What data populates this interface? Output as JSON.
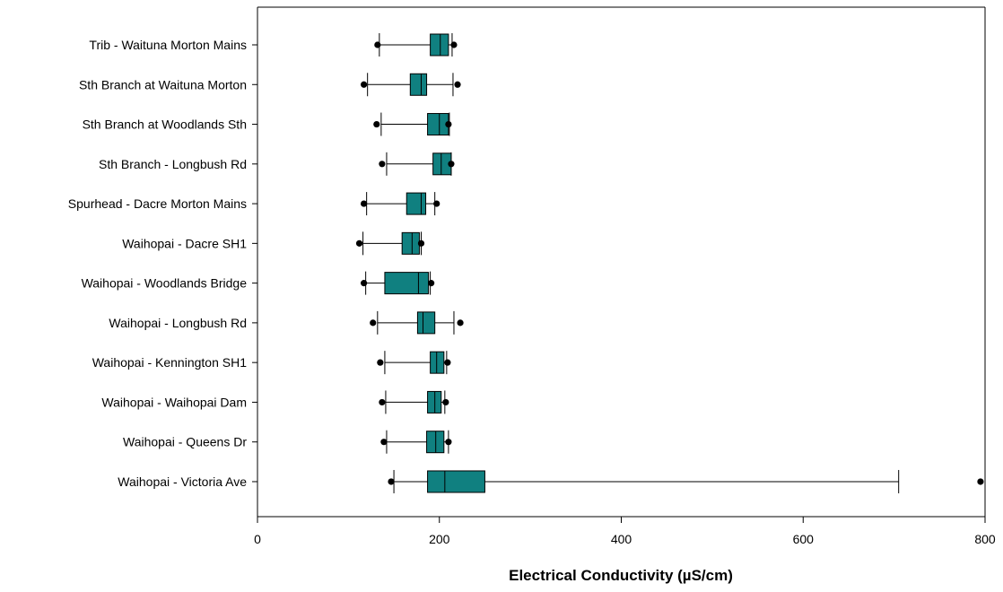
{
  "chart_data": {
    "type": "boxplot",
    "orientation": "horizontal",
    "xlabel": "Electrical Conductivity (µS/cm)",
    "xlim": [
      0,
      800
    ],
    "xticks": [
      0,
      200,
      400,
      600,
      800
    ],
    "grid": false,
    "box_color": "#108080",
    "categories": [
      "Trib - Waituna Morton Mains",
      "Sth Branch at Waituna Morton",
      "Sth Branch at Woodlands Sth",
      "Sth Branch - Longbush Rd",
      "Spurhead - Dacre Morton Mains",
      "Waihopai - Dacre SH1",
      "Waihopai - Woodlands Bridge",
      "Waihopai - Longbush Rd",
      "Waihopai - Kennington SH1",
      "Waihopai - Waihopai Dam",
      "Waihopai - Queens Dr",
      "Waihopai - Victoria Ave"
    ],
    "boxes": [
      {
        "whisker_low": 134,
        "q1": 190,
        "median": 201,
        "q3": 210,
        "whisker_high": 214,
        "outliers": [
          132,
          216
        ]
      },
      {
        "whisker_low": 121,
        "q1": 168,
        "median": 180,
        "q3": 186,
        "whisker_high": 215,
        "outliers": [
          117,
          220
        ]
      },
      {
        "whisker_low": 136,
        "q1": 187,
        "median": 200,
        "q3": 210,
        "whisker_high": 211,
        "outliers": [
          131,
          210
        ]
      },
      {
        "whisker_low": 142,
        "q1": 193,
        "median": 202,
        "q3": 213,
        "whisker_high": 213,
        "outliers": [
          137,
          213
        ]
      },
      {
        "whisker_low": 120,
        "q1": 164,
        "median": 180,
        "q3": 185,
        "whisker_high": 195,
        "outliers": [
          117,
          197
        ]
      },
      {
        "whisker_low": 116,
        "q1": 159,
        "median": 170,
        "q3": 178,
        "whisker_high": 180,
        "outliers": [
          112,
          180
        ]
      },
      {
        "whisker_low": 119,
        "q1": 140,
        "median": 177,
        "q3": 188,
        "whisker_high": 190,
        "outliers": [
          117,
          191
        ]
      },
      {
        "whisker_low": 132,
        "q1": 176,
        "median": 182,
        "q3": 195,
        "whisker_high": 216,
        "outliers": [
          127,
          223
        ]
      },
      {
        "whisker_low": 140,
        "q1": 190,
        "median": 197,
        "q3": 205,
        "whisker_high": 208,
        "outliers": [
          135,
          209
        ]
      },
      {
        "whisker_low": 141,
        "q1": 187,
        "median": 195,
        "q3": 202,
        "whisker_high": 206,
        "outliers": [
          137,
          207
        ]
      },
      {
        "whisker_low": 142,
        "q1": 186,
        "median": 196,
        "q3": 205,
        "whisker_high": 210,
        "outliers": [
          139,
          210
        ]
      },
      {
        "whisker_low": 150,
        "q1": 187,
        "median": 206,
        "q3": 250,
        "whisker_high": 705,
        "outliers": [
          147,
          795
        ]
      }
    ]
  }
}
